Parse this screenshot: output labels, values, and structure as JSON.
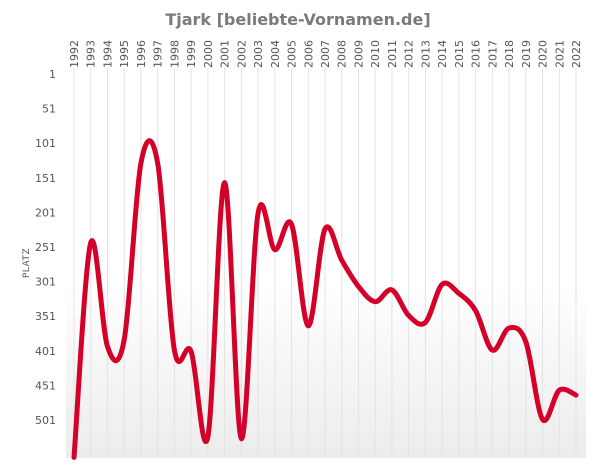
{
  "chart_data": {
    "type": "line",
    "title": "Tjark [beliebte-Vornamen.de]",
    "xlabel": "",
    "ylabel": "PLATZ",
    "y_inverted": true,
    "ylim": [
      1,
      551
    ],
    "y_ticks": [
      1,
      51,
      101,
      151,
      201,
      251,
      301,
      351,
      401,
      451,
      501
    ],
    "grid": "vertical",
    "legend": "none",
    "line_color": "#d4002a",
    "categories": [
      "1992",
      "1993",
      "1994",
      "1995",
      "1996",
      "1997",
      "1998",
      "1999",
      "2000",
      "2001",
      "2002",
      "2003",
      "2004",
      "2005",
      "2006",
      "2007",
      "2008",
      "2009",
      "2010",
      "2011",
      "2012",
      "2013",
      "2014",
      "2015",
      "2016",
      "2017",
      "2018",
      "2019",
      "2020",
      "2021",
      "2022"
    ],
    "series": [
      {
        "name": "",
        "values": [
          555,
          245,
          395,
          385,
          130,
          130,
          400,
          402,
          525,
          158,
          528,
          202,
          255,
          218,
          365,
          225,
          270,
          308,
          330,
          313,
          350,
          360,
          305,
          318,
          343,
          400,
          368,
          388,
          500,
          458,
          465
        ]
      }
    ]
  }
}
